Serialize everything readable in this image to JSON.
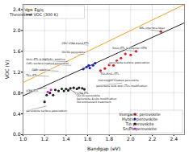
{
  "chart_data": {
    "type": "scatter",
    "xlabel": "Bandgap (eV)",
    "ylabel": "VOC (V)",
    "xlim": [
      1.0,
      2.5
    ],
    "ylim": [
      0.0,
      2.5
    ],
    "xticks": [
      {
        "value": 1.0,
        "label": "1.0"
      },
      1.2,
      1.4,
      1.6,
      1.8,
      {
        "value": 2.0,
        "label": "2.0"
      },
      2.2,
      2.4
    ],
    "yticks": [
      {
        "value": 0.0,
        "label": "0.0"
      },
      0.4,
      0.8,
      1.2,
      1.6,
      {
        "value": 2.0,
        "label": "2.0"
      },
      2.4
    ],
    "grid": true,
    "series": [
      {
        "name": "Vg= Eg/q",
        "type": "line",
        "color": "#f5a020",
        "legend": "upper left",
        "x": [
          1.0,
          2.5
        ],
        "values": [
          1.0,
          2.5
        ]
      },
      {
        "name": "Theoretical VOC (300 K)",
        "type": "line",
        "color": "#222222",
        "legend": "upper left",
        "x": [
          1.0,
          2.5
        ],
        "values": [
          0.745,
          2.1475
        ]
      },
      {
        "name": "Inorganic perovskite",
        "type": "scatter",
        "color": "#e8191a",
        "legend": "lower right",
        "x": [
          1.72,
          1.76,
          1.8,
          1.84,
          1.87,
          1.91,
          1.95,
          2.0,
          2.05,
          2.28
        ],
        "values": [
          1.23,
          1.27,
          1.34,
          1.33,
          1.42,
          1.47,
          1.55,
          1.53,
          1.6,
          1.98
        ]
      },
      {
        "name": "Hybrid perovskite",
        "type": "scatter",
        "color": "#2222cc",
        "legend": "lower right",
        "x": [
          1.56,
          1.59,
          1.61,
          1.62,
          1.65,
          1.67
        ],
        "values": [
          1.26,
          1.3,
          1.33,
          1.28,
          1.33,
          1.37
        ]
      },
      {
        "name": "Tin perovskite",
        "type": "scatter",
        "color": "#222222",
        "legend": "lower right",
        "x": [
          1.2,
          1.22,
          1.25,
          1.28,
          1.3,
          1.33,
          1.36,
          1.38,
          1.4,
          1.42,
          1.44,
          1.47,
          1.5,
          1.52,
          1.55,
          1.57
        ],
        "values": [
          0.63,
          0.76,
          0.8,
          0.76,
          0.86,
          0.84,
          0.88,
          0.84,
          0.88,
          0.85,
          0.89,
          0.9,
          0.88,
          0.9,
          0.89,
          0.87
        ]
      },
      {
        "name": "Sn/Pb perovskite",
        "type": "scatter",
        "color": "#dd22dd",
        "legend": "lower right",
        "x": [
          1.23,
          1.26
        ],
        "values": [
          0.82,
          0.86
        ]
      }
    ],
    "annotations": [
      {
        "text": "CMC ICBA blend ETL",
        "xy": [
          1.61,
          1.72
        ],
        "xytext": [
          1.36,
          1.76
        ]
      },
      {
        "text": "2D/3D perovskite",
        "xy": [
          1.57,
          1.54
        ],
        "xytext": [
          1.36,
          1.59
        ]
      },
      {
        "text": "SnO₂ ETL & MAPbBr₃ additive",
        "xy": [
          1.42,
          1.4
        ],
        "xytext": [
          1.03,
          1.44
        ]
      },
      {
        "text": "CdSₓ surface treated perovskite",
        "xy": [
          1.45,
          1.33
        ],
        "xytext": [
          1.03,
          1.37
        ]
      },
      {
        "text": "GABr additive",
        "xy": [
          1.33,
          1.22
        ],
        "xytext": [
          1.08,
          1.25
        ]
      },
      {
        "text": "TiO₂ ETL",
        "xy": [
          1.24,
          1.12
        ],
        "xytext": [
          1.03,
          1.14
        ]
      },
      {
        "text": "ICBA ETL",
        "xy": [
          1.22,
          0.9
        ],
        "xytext": [
          1.03,
          0.84
        ]
      },
      {
        "text": "perovskite surface passivation",
        "xy": [
          1.22,
          0.55
        ],
        "xytext": [
          1.03,
          0.46
        ]
      },
      {
        "text": "WS₂ interface layer",
        "xy": [
          2.28,
          1.98
        ],
        "xytext": [
          2.08,
          2.05
        ]
      },
      {
        "text": "SnOx ETL & polymer HTM",
        "xy": [
          2.05,
          1.6
        ],
        "xytext": [
          1.83,
          1.66
        ]
      },
      {
        "text": "perovskite surface passivation",
        "xy": [
          1.95,
          1.38
        ],
        "xytext": [
          1.8,
          1.38
        ]
      },
      {
        "text": "TiO₂/SnO₂ ETL",
        "xy": [
          1.83,
          1.18
        ],
        "xytext": [
          1.72,
          1.16
        ]
      },
      {
        "text": "hot oxygen treated perovskite",
        "xy": [
          1.87,
          1.07
        ],
        "xytext": [
          1.7,
          1.04
        ]
      },
      {
        "text": "perovskite bulk and CTLs modification",
        "xy": [
          1.92,
          0.99
        ],
        "xytext": [
          1.68,
          0.94
        ]
      },
      {
        "text": "ICBA ETL",
        "xy": [
          1.42,
          0.88
        ],
        "xytext": [
          1.5,
          0.8
        ]
      },
      {
        "text": "2D/3D perovskite",
        "xy": [
          1.47,
          0.84
        ],
        "xytext": [
          1.5,
          0.75
        ]
      },
      {
        "text": "perovskite A-site modification",
        "xy": [
          1.52,
          0.78
        ],
        "xytext": [
          1.5,
          0.69
        ]
      },
      {
        "text": "hot antisolvent treatment",
        "xy": [
          1.55,
          0.72
        ],
        "xytext": [
          1.5,
          0.62
        ]
      }
    ]
  }
}
